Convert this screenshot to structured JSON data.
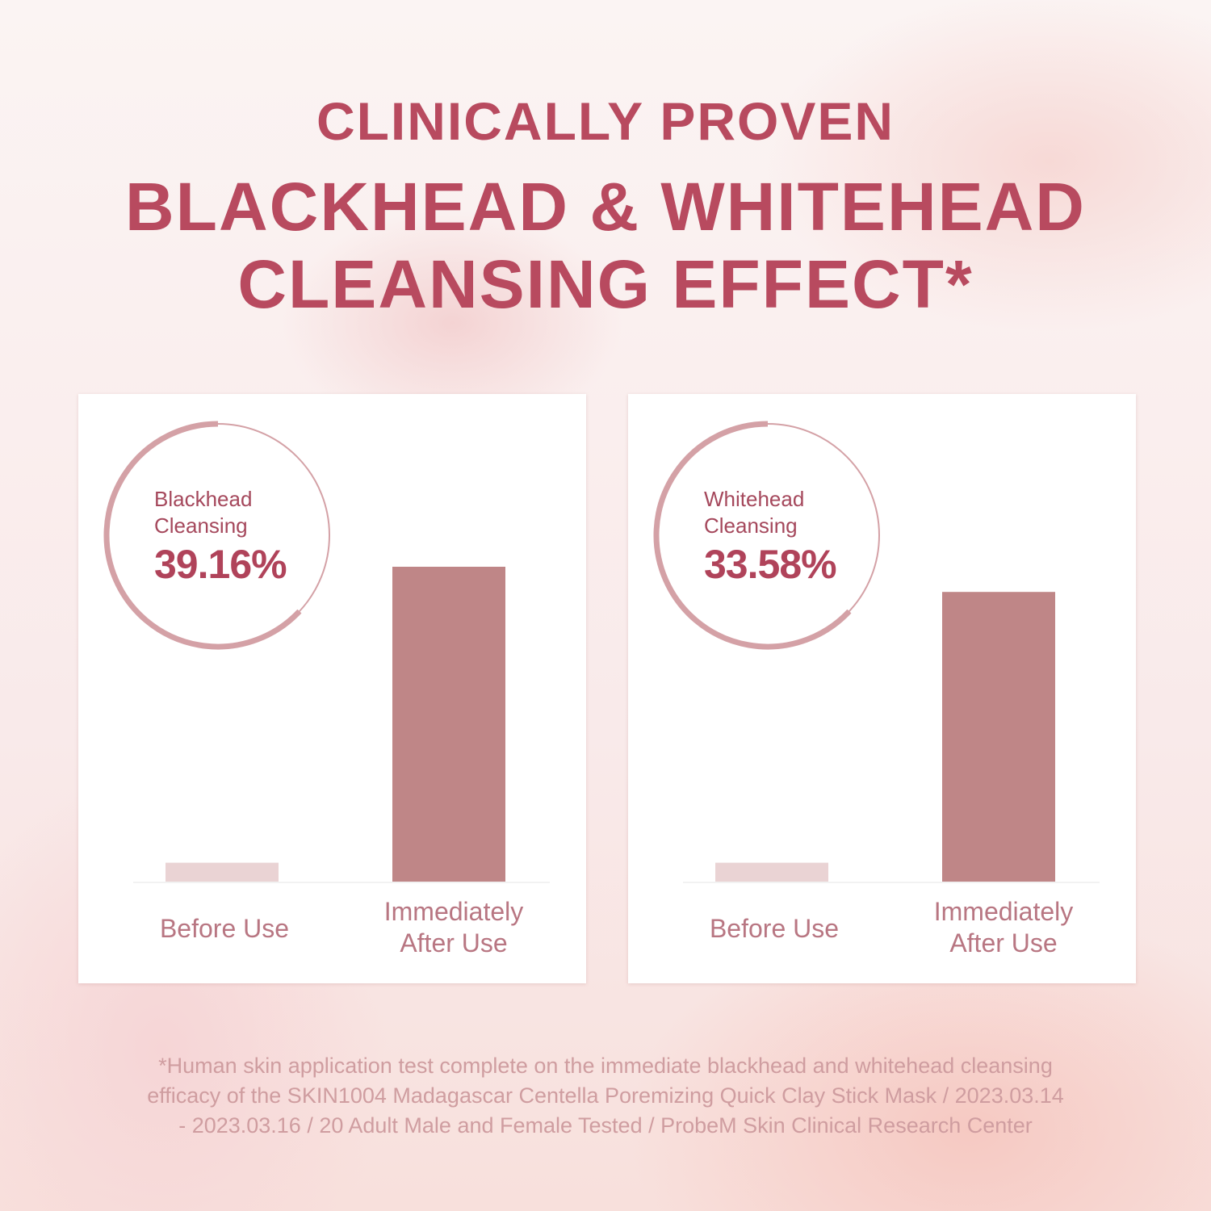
{
  "header": {
    "line1": "CLINICALLY PROVEN",
    "line2": "BLACKHEAD & WHITEHEAD",
    "line3": "CLEANSING EFFECT*"
  },
  "colors": {
    "title": "#b84a5f",
    "after_bar": "#bf8687",
    "before_bar": "#ead3d4",
    "ring": "#d4a1a6"
  },
  "chart_data": [
    {
      "type": "bar",
      "title": "Blackhead Cleansing",
      "badge_value": "39.16%",
      "categories": [
        "Before Use",
        "Immediately After Use"
      ],
      "values": [
        6,
        100
      ],
      "ylabel": "",
      "xlabel": "",
      "grid": false
    },
    {
      "type": "bar",
      "title": "Whitehead Cleansing",
      "badge_value": "33.58%",
      "categories": [
        "Before Use",
        "Immediately After Use"
      ],
      "values": [
        6,
        92
      ],
      "ylabel": "",
      "xlabel": "",
      "grid": false
    }
  ],
  "cards": [
    {
      "label_line1": "Blackhead",
      "label_line2": "Cleansing",
      "value": "39.16%",
      "x_labels": [
        "Before Use",
        "Immediately",
        "After Use"
      ]
    },
    {
      "label_line1": "Whitehead",
      "label_line2": "Cleansing",
      "value": "33.58%",
      "x_labels": [
        "Before Use",
        "Immediately",
        "After Use"
      ]
    }
  ],
  "footnote": {
    "line1": "*Human skin application test complete on the immediate blackhead and whitehead cleansing",
    "line2": "efficacy of the SKIN1004 Madagascar Centella Poremizing Quick Clay Stick Mask / 2023.03.14",
    "line3": "- 2023.03.16 / 20 Adult Male and Female Tested / ProbeM Skin Clinical Research Center"
  }
}
